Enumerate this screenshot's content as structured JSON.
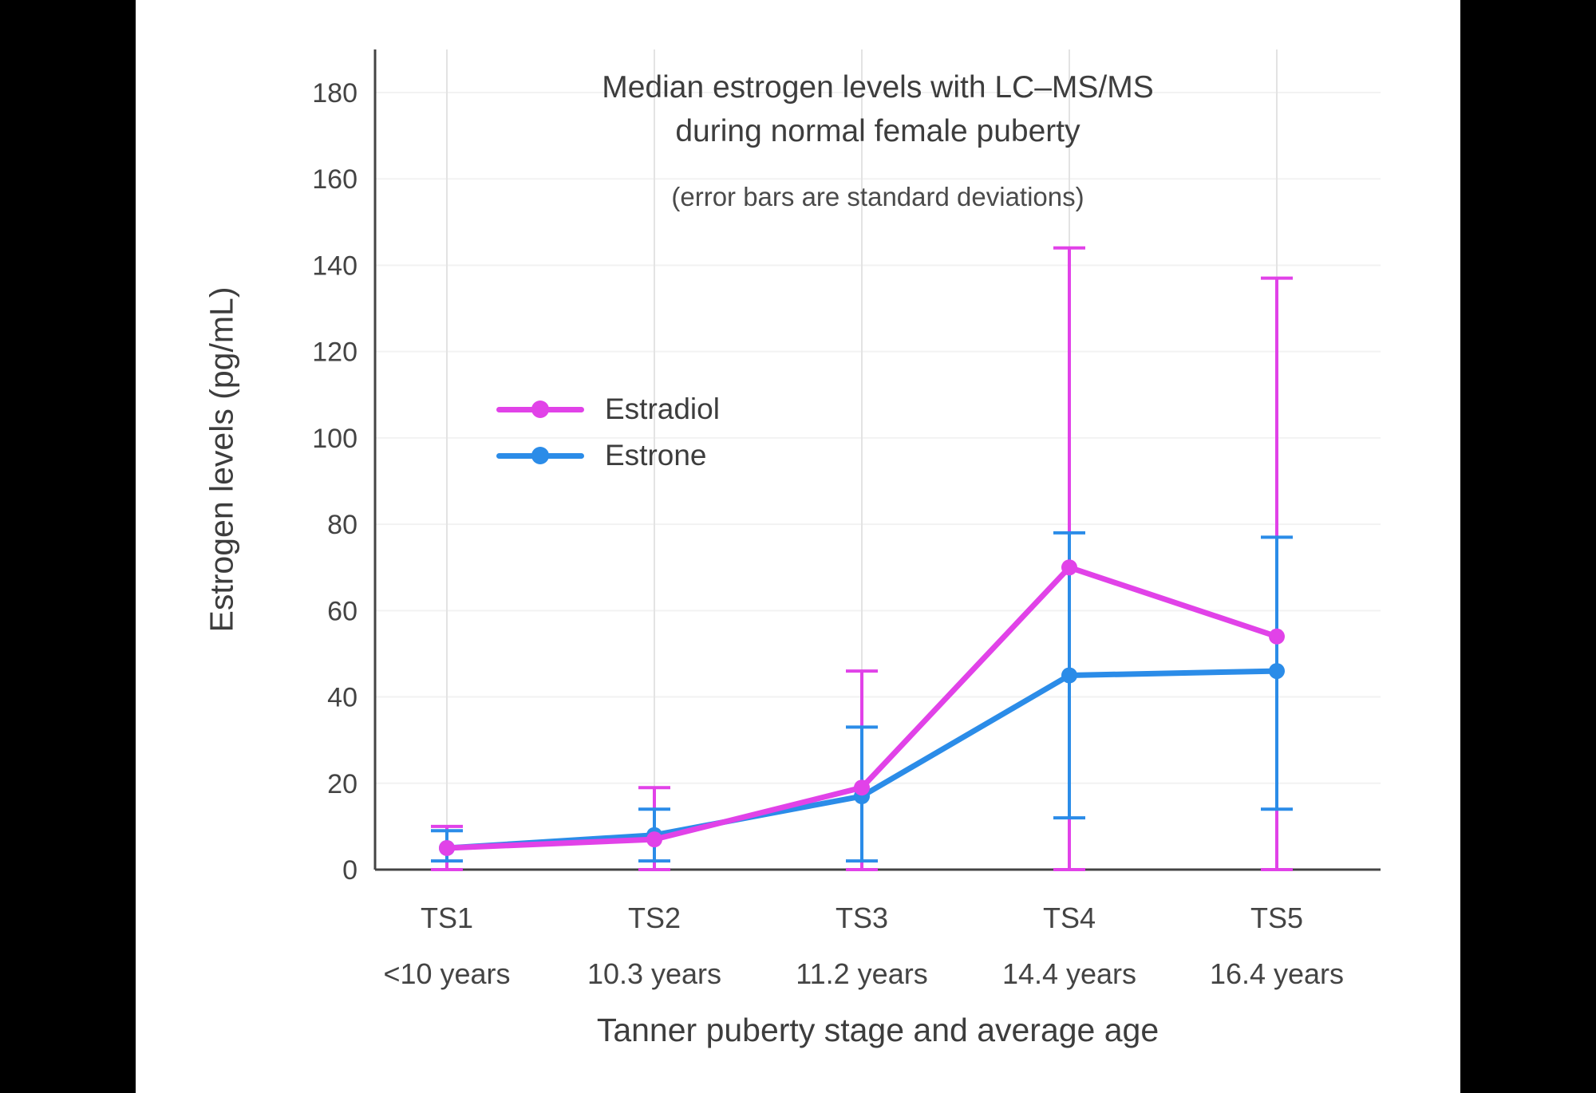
{
  "chart_data": {
    "type": "line",
    "title": "Median estrogen levels with LC–MS/MS during normal female puberty",
    "title_lines": [
      "Median estrogen levels with LC–MS/MS",
      "during normal female puberty"
    ],
    "subtitle": "(error bars are standard deviations)",
    "xlabel": "Tanner puberty stage and average age",
    "ylabel": "Estrogen levels (pg/mL)",
    "ylim": [
      0,
      190
    ],
    "yticks": [
      0,
      20,
      40,
      60,
      80,
      100,
      120,
      140,
      160,
      180
    ],
    "grid": "light vertical and faint horizontal gridlines",
    "legend_position": "inside upper-left area of plot",
    "categories": [
      "TS1",
      "TS2",
      "TS3",
      "TS4",
      "TS5"
    ],
    "category_sublabels": [
      "<10 years",
      "10.3 years",
      "11.2 years",
      "14.4 years",
      "16.4 years"
    ],
    "series": [
      {
        "name": "Estradiol",
        "color": "#E142E8",
        "values": [
          5,
          7,
          19,
          70,
          54
        ],
        "error_low": [
          0,
          0,
          0,
          0,
          0
        ],
        "error_high": [
          10,
          19,
          46,
          144,
          137
        ]
      },
      {
        "name": "Estrone",
        "color": "#2B8CE8",
        "values": [
          5,
          8,
          17,
          45,
          46
        ],
        "error_low": [
          2,
          2,
          2,
          12,
          14
        ],
        "error_high": [
          9,
          14,
          33,
          78,
          77
        ]
      }
    ]
  },
  "colors": {
    "background_sidebars": "#000000",
    "panel_background": "#ffffff",
    "text": "#3d3d3d",
    "axis": "#444444",
    "v_gridline": "#e3e3e3",
    "h_gridline": "#f2f2f2"
  }
}
